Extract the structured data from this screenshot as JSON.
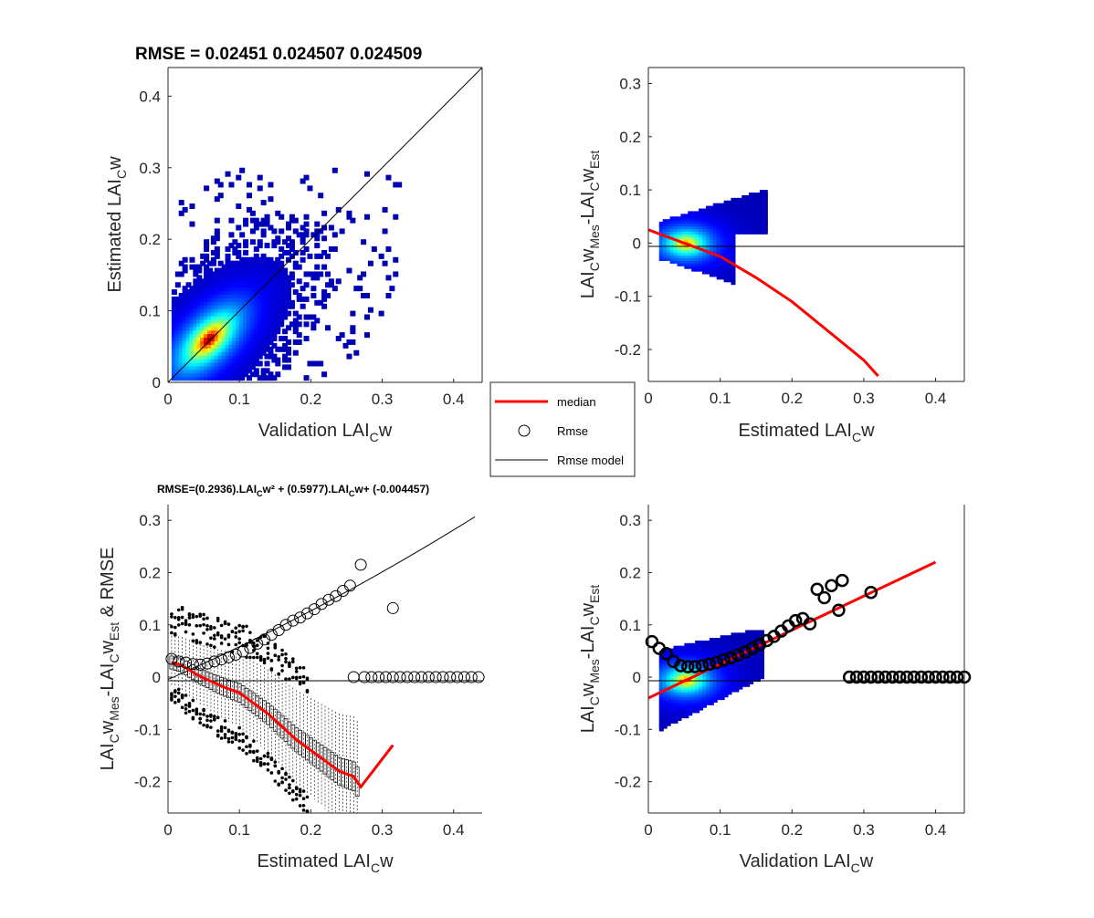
{
  "chart_data": [
    {
      "type": "heatmap",
      "title": "RMSE = 0.02451     0.024507     0.024509",
      "xlabel": {
        "base": "Validation LAI",
        "sub": "C",
        "tail": "w"
      },
      "ylabel": {
        "base": "Estimated LAI",
        "sub": "C",
        "tail": "w"
      },
      "xlim": [
        0,
        0.44
      ],
      "ylim": [
        0,
        0.44
      ],
      "xticks": [
        "0",
        "0.1",
        "0.2",
        "0.3",
        "0.4"
      ],
      "yticks": [
        "0",
        "0.1",
        "0.2",
        "0.3",
        "0.4"
      ],
      "hot_spot": {
        "x": 0.055,
        "y": 0.06
      },
      "reference_line": {
        "x": [
          0,
          0.44
        ],
        "y": [
          0,
          0.44
        ]
      }
    },
    {
      "type": "heatmap",
      "title": "",
      "xlabel": {
        "base": "Estimated LAI",
        "sub": "C",
        "tail": "w"
      },
      "ylabel": {
        "parts": [
          "LAI",
          "C",
          "w",
          "Mes",
          "-LAI",
          "C",
          "w",
          "Est"
        ]
      },
      "xlim": [
        0,
        0.44
      ],
      "ylim": [
        -0.26,
        0.33
      ],
      "xticks": [
        "0",
        "0.1",
        "0.2",
        "0.3",
        "0.4"
      ],
      "yticks": [
        "-0.2",
        "-0.1",
        "0",
        "0.1",
        "0.2",
        "0.3"
      ],
      "hot_spot": {
        "x": 0.05,
        "y": 0.0
      },
      "median": {
        "x": [
          0,
          0.05,
          0.1,
          0.15,
          0.2,
          0.25,
          0.3,
          0.32
        ],
        "y": [
          0.025,
          0.0,
          -0.025,
          -0.065,
          -0.11,
          -0.165,
          -0.22,
          -0.25
        ]
      }
    },
    {
      "type": "scatter",
      "title": {
        "p1": "RMSE=(0.2936).LAI",
        "s1": "C",
        "p2": "w² + (0.5977).LAI",
        "s2": "C",
        "p3": "w+ (-0.004457)"
      },
      "xlabel": {
        "base": "Estimated LAI",
        "sub": "C",
        "tail": "w"
      },
      "ylabel": {
        "parts": [
          "LAI",
          "C",
          "w",
          "Mes",
          "-LAI",
          "C",
          "w",
          "Est",
          " & RMSE"
        ]
      },
      "xlim": [
        0,
        0.44
      ],
      "ylim": [
        -0.26,
        0.33
      ],
      "xticks": [
        "0",
        "0.1",
        "0.2",
        "0.3",
        "0.4"
      ],
      "yticks": [
        "-0.2",
        "-0.1",
        "0",
        "0.1",
        "0.2",
        "0.3"
      ],
      "rmse_model": {
        "a": 0.2936,
        "b": 0.5977,
        "c": -0.004457
      },
      "rmse_points": {
        "x": [
          0.005,
          0.015,
          0.025,
          0.035,
          0.045,
          0.055,
          0.065,
          0.075,
          0.085,
          0.095,
          0.105,
          0.115,
          0.125,
          0.135,
          0.145,
          0.155,
          0.165,
          0.175,
          0.185,
          0.195,
          0.205,
          0.215,
          0.225,
          0.235,
          0.245,
          0.255,
          0.27,
          0.315
        ],
        "y": [
          0.035,
          0.03,
          0.028,
          0.025,
          0.024,
          0.026,
          0.03,
          0.034,
          0.038,
          0.043,
          0.049,
          0.056,
          0.064,
          0.072,
          0.081,
          0.09,
          0.1,
          0.108,
          0.114,
          0.122,
          0.13,
          0.14,
          0.148,
          0.155,
          0.165,
          0.175,
          0.215,
          0.132
        ]
      },
      "zero_points_x": [
        0.26,
        0.275,
        0.285,
        0.295,
        0.305,
        0.315,
        0.325,
        0.335,
        0.345,
        0.355,
        0.365,
        0.375,
        0.385,
        0.395,
        0.405,
        0.415,
        0.425,
        0.435
      ],
      "median": {
        "x": [
          0.005,
          0.02,
          0.04,
          0.06,
          0.08,
          0.1,
          0.12,
          0.14,
          0.16,
          0.18,
          0.2,
          0.22,
          0.24,
          0.25,
          0.26,
          0.27,
          0.315
        ],
        "y": [
          0.028,
          0.022,
          0.005,
          -0.008,
          -0.02,
          -0.03,
          -0.05,
          -0.07,
          -0.095,
          -0.12,
          -0.14,
          -0.16,
          -0.18,
          -0.185,
          -0.19,
          -0.21,
          -0.13
        ]
      }
    },
    {
      "type": "scatter",
      "title": "",
      "xlabel": {
        "base": "Validation LAI",
        "sub": "C",
        "tail": "w"
      },
      "ylabel": {
        "parts": [
          "LAI",
          "C",
          "w",
          "Mes",
          "-LAI",
          "C",
          "w",
          "Est"
        ]
      },
      "xlim": [
        0,
        0.44
      ],
      "ylim": [
        -0.26,
        0.33
      ],
      "xticks": [
        "0",
        "0.1",
        "0.2",
        "0.3",
        "0.4"
      ],
      "yticks": [
        "-0.2",
        "-0.1",
        "0",
        "0.1",
        "0.2",
        "0.3"
      ],
      "median": {
        "x": [
          0,
          0.4
        ],
        "y": [
          -0.04,
          0.22
        ]
      },
      "rmse_points": {
        "x": [
          0.005,
          0.015,
          0.025,
          0.035,
          0.045,
          0.055,
          0.065,
          0.075,
          0.085,
          0.095,
          0.105,
          0.115,
          0.125,
          0.135,
          0.145,
          0.155,
          0.165,
          0.175,
          0.185,
          0.195,
          0.205,
          0.215,
          0.225,
          0.235,
          0.245,
          0.255,
          0.265,
          0.27,
          0.31
        ],
        "y": [
          0.068,
          0.055,
          0.045,
          0.03,
          0.022,
          0.02,
          0.02,
          0.022,
          0.025,
          0.028,
          0.033,
          0.037,
          0.042,
          0.048,
          0.055,
          0.062,
          0.07,
          0.078,
          0.088,
          0.098,
          0.108,
          0.112,
          0.102,
          0.168,
          0.152,
          0.175,
          0.128,
          0.185,
          0.162
        ]
      },
      "zero_points_x": [
        0.28,
        0.29,
        0.3,
        0.31,
        0.32,
        0.33,
        0.34,
        0.35,
        0.36,
        0.37,
        0.38,
        0.39,
        0.4,
        0.41,
        0.42,
        0.43,
        0.44
      ]
    }
  ],
  "legend": {
    "items": [
      {
        "label": "median",
        "style": "red-line"
      },
      {
        "label": "Rmse",
        "style": "circle"
      },
      {
        "label": "Rmse model",
        "style": "black-line"
      }
    ]
  },
  "colors": {
    "median": "#ff0000",
    "axis": "#262626",
    "jet_low": "#0000ff",
    "jet_high": "#ff0000"
  }
}
